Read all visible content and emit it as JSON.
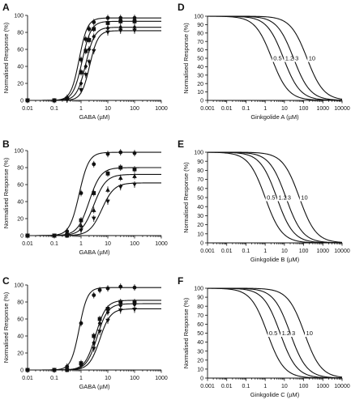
{
  "chart_data": [
    {
      "id": "A",
      "type": "line",
      "panel_letter": "A",
      "scale": "log-x",
      "xlabel": "GABA (µM)",
      "ylabel": "Normalised Response (%)",
      "xlim": [
        0.01,
        1000
      ],
      "ylim": [
        0,
        100
      ],
      "xticks": [
        "0.01",
        "0.1",
        "1",
        "10",
        "100",
        "1000"
      ],
      "yticks": [
        "0",
        "20",
        "40",
        "60",
        "80",
        "100"
      ],
      "x": [
        0.01,
        0.1,
        0.3,
        1,
        1.5,
        2,
        3,
        10,
        30,
        100
      ],
      "series": [
        {
          "marker": "circle",
          "ec50": 0.85,
          "hill": 2.8,
          "max": 97,
          "values": [
            0,
            0,
            3,
            48,
            72,
            84,
            92,
            97,
            97,
            97
          ]
        },
        {
          "marker": "square",
          "ec50": 1.1,
          "hill": 2.6,
          "max": 93,
          "values": [
            0,
            0,
            2,
            33,
            58,
            71,
            84,
            91,
            93,
            93
          ]
        },
        {
          "marker": "diamond",
          "ec50": 1.5,
          "hill": 2.6,
          "max": 86,
          "values": [
            0,
            0,
            1,
            20,
            40,
            60,
            75,
            85,
            86,
            86
          ]
        },
        {
          "marker": "triangle-down",
          "ec50": 2.1,
          "hill": 2.8,
          "max": 82,
          "values": [
            0,
            0,
            1,
            12,
            30,
            45,
            58,
            80,
            82,
            82
          ]
        }
      ]
    },
    {
      "id": "D",
      "type": "line",
      "panel_letter": "D",
      "scale": "log-x",
      "xlabel": "Ginkgolide A (µM)",
      "ylabel": "Normalised Response (%)",
      "xlim": [
        0.001,
        10000
      ],
      "ylim": [
        0,
        100
      ],
      "xticks": [
        "0.001",
        "0.01",
        "0.1",
        "1",
        "10",
        "100",
        "1000",
        "10000"
      ],
      "yticks": [
        "0",
        "10",
        "20",
        "30",
        "40",
        "50",
        "60",
        "70",
        "80",
        "90",
        "100"
      ],
      "series": [
        {
          "name": "0.5",
          "ic50": 2.2,
          "hill": 1.0
        },
        {
          "name": "1.2",
          "ic50": 9,
          "hill": 1.0
        },
        {
          "name": "3",
          "ic50": 30,
          "hill": 1.0
        },
        {
          "name": "10",
          "ic50": 150,
          "hill": 1.0
        }
      ]
    },
    {
      "id": "B",
      "type": "line",
      "panel_letter": "B",
      "scale": "log-x",
      "xlabel": "GABA (µM)",
      "ylabel": "Normalised Response (%)",
      "xlim": [
        0.01,
        1000
      ],
      "ylim": [
        0,
        100
      ],
      "xticks": [
        "0.01",
        "0.1",
        "1",
        "10",
        "100",
        "1000"
      ],
      "yticks": [
        "0",
        "20",
        "40",
        "60",
        "80",
        "100"
      ],
      "x": [
        0.01,
        0.1,
        0.3,
        1,
        3,
        10,
        30,
        100
      ],
      "series": [
        {
          "marker": "circle",
          "ec50": 0.85,
          "hill": 2.4,
          "max": 98,
          "values": [
            0,
            0,
            5,
            50,
            84,
            96,
            98,
            97
          ]
        },
        {
          "marker": "square",
          "ec50": 2.0,
          "hill": 2.0,
          "max": 80,
          "values": [
            0,
            0,
            1,
            18,
            50,
            73,
            80,
            78
          ]
        },
        {
          "marker": "triangle-up",
          "ec50": 3.0,
          "hill": 1.9,
          "max": 72,
          "values": [
            0,
            0,
            0,
            12,
            30,
            54,
            68,
            70
          ]
        },
        {
          "marker": "triangle-down",
          "ec50": 6.0,
          "hill": 1.9,
          "max": 62,
          "values": [
            0,
            0,
            0,
            6,
            20,
            40,
            57,
            60
          ]
        }
      ]
    },
    {
      "id": "E",
      "type": "line",
      "panel_letter": "E",
      "scale": "log-x",
      "xlabel": "Ginkgolide B (µM)",
      "ylabel": "Normalised Response (%)",
      "xlim": [
        0.001,
        10000
      ],
      "ylim": [
        0,
        100
      ],
      "xticks": [
        "0.001",
        "0.01",
        "0.1",
        "1",
        "10",
        "100",
        "1000",
        "10000"
      ],
      "yticks": [
        "0",
        "10",
        "20",
        "30",
        "40",
        "50",
        "60",
        "70",
        "80",
        "90",
        "100"
      ],
      "series": [
        {
          "name": "0.5",
          "ic50": 1.0,
          "hill": 1.0
        },
        {
          "name": "1.2",
          "ic50": 4,
          "hill": 1.0
        },
        {
          "name": "3",
          "ic50": 12,
          "hill": 1.0
        },
        {
          "name": "10",
          "ic50": 60,
          "hill": 1.0
        }
      ]
    },
    {
      "id": "C",
      "type": "line",
      "panel_letter": "C",
      "scale": "log-x",
      "xlabel": "GABA (µM)",
      "ylabel": "Normalised Response (%)",
      "xlim": [
        0.01,
        1000
      ],
      "ylim": [
        0,
        100
      ],
      "xticks": [
        "0.01",
        "0.1",
        "1",
        "10",
        "100",
        "1000"
      ],
      "yticks": [
        "0",
        "20",
        "40",
        "60",
        "80",
        "100"
      ],
      "x": [
        0.01,
        0.1,
        0.3,
        1,
        3,
        5,
        10,
        30,
        100
      ],
      "series": [
        {
          "marker": "circle",
          "ec50": 0.85,
          "hill": 2.8,
          "max": 97,
          "values": [
            0,
            0,
            4,
            55,
            88,
            94,
            96,
            98,
            97
          ]
        },
        {
          "marker": "square",
          "ec50": 3.5,
          "hill": 2.2,
          "max": 82,
          "values": [
            0,
            0,
            0,
            8,
            40,
            60,
            72,
            80,
            80
          ]
        },
        {
          "marker": "diamond",
          "ec50": 4.0,
          "hill": 2.2,
          "max": 78,
          "values": [
            0,
            0,
            0,
            6,
            32,
            55,
            68,
            76,
            77
          ]
        },
        {
          "marker": "triangle-down",
          "ec50": 5.0,
          "hill": 2.2,
          "max": 72,
          "values": [
            0,
            0,
            0,
            5,
            25,
            45,
            58,
            70,
            71
          ]
        }
      ]
    },
    {
      "id": "F",
      "type": "line",
      "panel_letter": "F",
      "scale": "log-x",
      "xlabel": "Ginkgolide C (µM)",
      "ylabel": "Normalised Response (%)",
      "xlim": [
        0.001,
        10000
      ],
      "ylim": [
        0,
        100
      ],
      "xticks": [
        "0.001",
        "0.01",
        "0.1",
        "1",
        "10",
        "100",
        "1000",
        "10000"
      ],
      "yticks": [
        "0",
        "10",
        "20",
        "30",
        "40",
        "50",
        "60",
        "70",
        "80",
        "90",
        "100"
      ],
      "series": [
        {
          "name": "0.5",
          "ic50": 1.3,
          "hill": 1.0
        },
        {
          "name": "1.2",
          "ic50": 6,
          "hill": 1.0
        },
        {
          "name": "3",
          "ic50": 20,
          "hill": 1.0
        },
        {
          "name": "10",
          "ic50": 110,
          "hill": 1.0
        }
      ]
    }
  ]
}
